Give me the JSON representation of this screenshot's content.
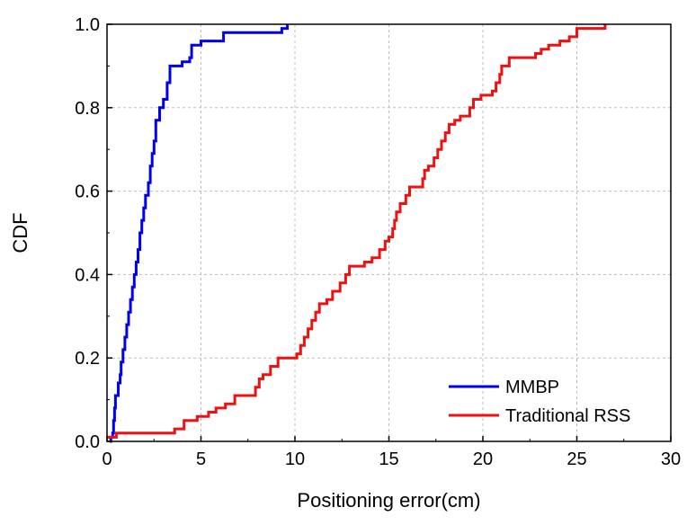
{
  "chart_data": {
    "type": "line",
    "xlabel": "Positioning error(cm)",
    "ylabel": "CDF",
    "xlim": [
      0,
      30
    ],
    "ylim": [
      0,
      1.0
    ],
    "x_ticks": [
      "0",
      "5",
      "10",
      "15",
      "20",
      "25",
      "30"
    ],
    "y_ticks": [
      "0.0",
      "0.2",
      "0.4",
      "0.6",
      "0.8",
      "1.0"
    ],
    "grid": true,
    "legend_position": "bottom-right",
    "series": [
      {
        "name": "MMBP",
        "color": "#0000ee",
        "step": true,
        "points": [
          [
            0.15,
            0.0
          ],
          [
            0.2,
            0.01
          ],
          [
            0.3,
            0.02
          ],
          [
            0.35,
            0.05
          ],
          [
            0.4,
            0.08
          ],
          [
            0.45,
            0.11
          ],
          [
            0.6,
            0.12
          ],
          [
            0.6,
            0.14
          ],
          [
            0.7,
            0.16
          ],
          [
            0.75,
            0.19
          ],
          [
            0.85,
            0.22
          ],
          [
            0.95,
            0.25
          ],
          [
            1.05,
            0.28
          ],
          [
            1.15,
            0.31
          ],
          [
            1.25,
            0.34
          ],
          [
            1.35,
            0.37
          ],
          [
            1.45,
            0.4
          ],
          [
            1.55,
            0.43
          ],
          [
            1.65,
            0.46
          ],
          [
            1.75,
            0.5
          ],
          [
            1.85,
            0.53
          ],
          [
            1.95,
            0.56
          ],
          [
            2.05,
            0.59
          ],
          [
            2.2,
            0.62
          ],
          [
            2.3,
            0.66
          ],
          [
            2.4,
            0.69
          ],
          [
            2.5,
            0.72
          ],
          [
            2.6,
            0.77
          ],
          [
            2.8,
            0.79
          ],
          [
            2.8,
            0.8
          ],
          [
            3.0,
            0.82
          ],
          [
            3.2,
            0.86
          ],
          [
            3.35,
            0.9
          ],
          [
            4.0,
            0.91
          ],
          [
            4.4,
            0.92
          ],
          [
            4.5,
            0.95
          ],
          [
            5.0,
            0.96
          ],
          [
            6.2,
            0.98
          ],
          [
            9.3,
            0.99
          ],
          [
            9.6,
            1.0
          ]
        ]
      },
      {
        "name": "Traditional RSS",
        "color": "#ee1111",
        "step": true,
        "points": [
          [
            0.0,
            0.01
          ],
          [
            0.5,
            0.02
          ],
          [
            3.6,
            0.03
          ],
          [
            4.1,
            0.05
          ],
          [
            4.8,
            0.06
          ],
          [
            5.4,
            0.07
          ],
          [
            5.8,
            0.08
          ],
          [
            6.3,
            0.09
          ],
          [
            6.8,
            0.11
          ],
          [
            7.9,
            0.13
          ],
          [
            8.1,
            0.15
          ],
          [
            8.3,
            0.16
          ],
          [
            8.7,
            0.18
          ],
          [
            9.1,
            0.2
          ],
          [
            10.1,
            0.21
          ],
          [
            10.3,
            0.23
          ],
          [
            10.5,
            0.25
          ],
          [
            10.7,
            0.27
          ],
          [
            10.9,
            0.29
          ],
          [
            11.1,
            0.31
          ],
          [
            11.3,
            0.33
          ],
          [
            11.7,
            0.34
          ],
          [
            12.0,
            0.36
          ],
          [
            12.4,
            0.38
          ],
          [
            12.7,
            0.4
          ],
          [
            12.9,
            0.42
          ],
          [
            13.7,
            0.43
          ],
          [
            14.1,
            0.44
          ],
          [
            14.5,
            0.46
          ],
          [
            14.8,
            0.48
          ],
          [
            15.0,
            0.49
          ],
          [
            15.2,
            0.51
          ],
          [
            15.3,
            0.53
          ],
          [
            15.4,
            0.55
          ],
          [
            15.6,
            0.57
          ],
          [
            15.9,
            0.59
          ],
          [
            16.1,
            0.61
          ],
          [
            16.8,
            0.63
          ],
          [
            16.9,
            0.65
          ],
          [
            17.1,
            0.66
          ],
          [
            17.4,
            0.68
          ],
          [
            17.6,
            0.7
          ],
          [
            17.8,
            0.72
          ],
          [
            18.0,
            0.74
          ],
          [
            18.2,
            0.76
          ],
          [
            18.5,
            0.77
          ],
          [
            18.8,
            0.78
          ],
          [
            19.3,
            0.8
          ],
          [
            19.5,
            0.82
          ],
          [
            19.9,
            0.83
          ],
          [
            20.5,
            0.84
          ],
          [
            20.7,
            0.86
          ],
          [
            20.9,
            0.88
          ],
          [
            21.0,
            0.9
          ],
          [
            21.4,
            0.92
          ],
          [
            22.8,
            0.93
          ],
          [
            23.1,
            0.94
          ],
          [
            23.5,
            0.95
          ],
          [
            24.1,
            0.96
          ],
          [
            24.6,
            0.97
          ],
          [
            25.0,
            0.99
          ],
          [
            26.5,
            1.0
          ]
        ]
      }
    ]
  }
}
